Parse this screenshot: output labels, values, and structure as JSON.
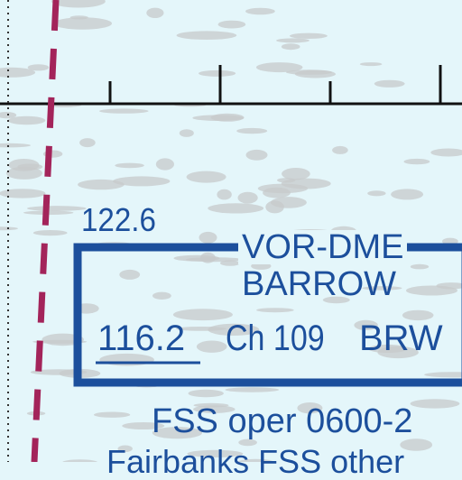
{
  "colors": {
    "background": "#e4f6fa",
    "terrain": "#c7c9cb",
    "label_blue": "#1c4f9c",
    "boundary_magenta": "#a3245a",
    "graticule": "#111111"
  },
  "comm_frequency": "122.6",
  "navaid": {
    "type": "VOR-DME",
    "name": "BARROW",
    "frequency": "116.2",
    "channel": "Ch 109",
    "identifier": "BRW"
  },
  "notes": {
    "line1": "FSS oper 0600-2",
    "line2": "Fairbanks FSS other"
  }
}
